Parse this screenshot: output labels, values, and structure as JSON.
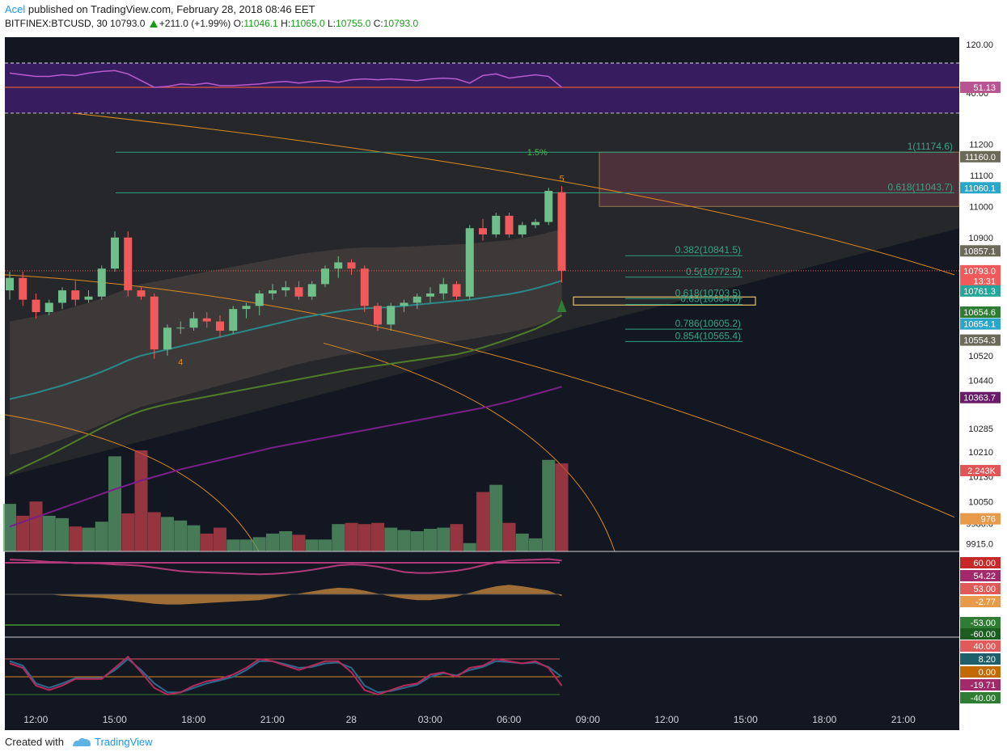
{
  "header": {
    "user": "Acel",
    "published_text": "published on TradingView.com, February 28, 2018 08:46 EET",
    "symbol": "BITFINEX:BTCUSD, 30",
    "last": "10793.0",
    "change": "+211.0 (+1.99%)",
    "o_label": "O:",
    "o_val": "11046.1",
    "h_label": "H:",
    "h_val": "11065.0",
    "l_label": "L:",
    "l_val": "10755.0",
    "c_label": "C:",
    "c_val": "10793.0"
  },
  "footer": {
    "created": "Created with",
    "brand": "TradingView"
  },
  "colors": {
    "background": "#131722",
    "up": "#6fbf8a",
    "down": "#f05a5a",
    "rsi_band": "#3e1f6b",
    "fib_line": "#2f9e80",
    "orange": "#e08a1e"
  },
  "chart_data": {
    "type": "candlestick",
    "price_axis": {
      "ylim": [
        9890,
        11300
      ],
      "ticks": [
        "11200",
        "11100",
        "11000",
        "10900",
        "10520",
        "10440",
        "10285",
        "10210",
        "10130",
        "10050",
        "9980.0",
        "9915.0"
      ],
      "tick_values": [
        11200,
        11100,
        11000,
        10900,
        10520,
        10440,
        10285,
        10210,
        10130,
        10050,
        9980,
        9915
      ]
    },
    "x_ticks": [
      "12:00",
      "15:00",
      "18:00",
      "21:00",
      "28",
      "03:00",
      "06:00",
      "09:00",
      "12:00",
      "15:00",
      "18:00",
      "21:00"
    ],
    "x_tick_index": [
      1,
      7,
      13,
      19,
      25,
      31,
      37,
      43,
      49,
      55,
      61,
      67
    ],
    "candles": [
      {
        "o": 10730,
        "h": 10790,
        "l": 10700,
        "c": 10770
      },
      {
        "o": 10770,
        "h": 10790,
        "l": 10680,
        "c": 10700
      },
      {
        "o": 10700,
        "h": 10720,
        "l": 10640,
        "c": 10660
      },
      {
        "o": 10660,
        "h": 10700,
        "l": 10650,
        "c": 10690
      },
      {
        "o": 10690,
        "h": 10740,
        "l": 10670,
        "c": 10730
      },
      {
        "o": 10730,
        "h": 10760,
        "l": 10680,
        "c": 10700
      },
      {
        "o": 10700,
        "h": 10730,
        "l": 10690,
        "c": 10710
      },
      {
        "o": 10710,
        "h": 10810,
        "l": 10700,
        "c": 10800
      },
      {
        "o": 10800,
        "h": 10920,
        "l": 10790,
        "c": 10900
      },
      {
        "o": 10900,
        "h": 10920,
        "l": 10710,
        "c": 10730
      },
      {
        "o": 10730,
        "h": 10740,
        "l": 10700,
        "c": 10710
      },
      {
        "o": 10710,
        "h": 10720,
        "l": 10510,
        "c": 10540
      },
      {
        "o": 10540,
        "h": 10620,
        "l": 10520,
        "c": 10610
      },
      {
        "o": 10610,
        "h": 10630,
        "l": 10590,
        "c": 10610
      },
      {
        "o": 10610,
        "h": 10660,
        "l": 10600,
        "c": 10640
      },
      {
        "o": 10640,
        "h": 10660,
        "l": 10610,
        "c": 10630
      },
      {
        "o": 10630,
        "h": 10650,
        "l": 10580,
        "c": 10600
      },
      {
        "o": 10600,
        "h": 10680,
        "l": 10590,
        "c": 10670
      },
      {
        "o": 10670,
        "h": 10690,
        "l": 10640,
        "c": 10680
      },
      {
        "o": 10680,
        "h": 10730,
        "l": 10650,
        "c": 10720
      },
      {
        "o": 10720,
        "h": 10750,
        "l": 10700,
        "c": 10730
      },
      {
        "o": 10730,
        "h": 10760,
        "l": 10710,
        "c": 10740
      },
      {
        "o": 10740,
        "h": 10760,
        "l": 10700,
        "c": 10710
      },
      {
        "o": 10710,
        "h": 10760,
        "l": 10700,
        "c": 10750
      },
      {
        "o": 10750,
        "h": 10810,
        "l": 10740,
        "c": 10800
      },
      {
        "o": 10800,
        "h": 10840,
        "l": 10770,
        "c": 10820
      },
      {
        "o": 10820,
        "h": 10830,
        "l": 10780,
        "c": 10800
      },
      {
        "o": 10800,
        "h": 10810,
        "l": 10660,
        "c": 10680
      },
      {
        "o": 10680,
        "h": 10690,
        "l": 10600,
        "c": 10620
      },
      {
        "o": 10620,
        "h": 10690,
        "l": 10600,
        "c": 10680
      },
      {
        "o": 10680,
        "h": 10700,
        "l": 10660,
        "c": 10690
      },
      {
        "o": 10690,
        "h": 10720,
        "l": 10670,
        "c": 10710
      },
      {
        "o": 10710,
        "h": 10740,
        "l": 10690,
        "c": 10720
      },
      {
        "o": 10720,
        "h": 10770,
        "l": 10700,
        "c": 10750
      },
      {
        "o": 10750,
        "h": 10760,
        "l": 10700,
        "c": 10710
      },
      {
        "o": 10710,
        "h": 10940,
        "l": 10700,
        "c": 10930
      },
      {
        "o": 10930,
        "h": 10960,
        "l": 10890,
        "c": 10910
      },
      {
        "o": 10910,
        "h": 10980,
        "l": 10900,
        "c": 10970
      },
      {
        "o": 10970,
        "h": 10980,
        "l": 10900,
        "c": 10910
      },
      {
        "o": 10910,
        "h": 10950,
        "l": 10900,
        "c": 10940
      },
      {
        "o": 10940,
        "h": 10960,
        "l": 10930,
        "c": 10950
      },
      {
        "o": 10950,
        "h": 11060,
        "l": 10940,
        "c": 11050
      },
      {
        "o": 11046,
        "h": 11065,
        "l": 10755,
        "c": 10793
      }
    ],
    "volume": [
      200,
      150,
      210,
      150,
      140,
      105,
      100,
      125,
      400,
      160,
      425,
      165,
      145,
      130,
      110,
      75,
      100,
      50,
      50,
      60,
      75,
      85,
      70,
      50,
      50,
      115,
      120,
      115,
      120,
      100,
      90,
      85,
      95,
      100,
      115,
      35,
      250,
      280,
      120,
      75,
      55,
      385,
      370
    ],
    "ema_blue": [
      10380,
      10390,
      10400,
      10412,
      10424,
      10438,
      10452,
      10468,
      10486,
      10505,
      10520,
      10530,
      10540,
      10550,
      10560,
      10570,
      10580,
      10590,
      10600,
      10610,
      10620,
      10630,
      10640,
      10648,
      10655,
      10662,
      10668,
      10672,
      10674,
      10676,
      10680,
      10684,
      10688,
      10692,
      10696,
      10700,
      10706,
      10712,
      10718,
      10726,
      10736,
      10748,
      10761
    ],
    "ema_green": [
      10140,
      10160,
      10180,
      10200,
      10222,
      10244,
      10266,
      10288,
      10308,
      10326,
      10342,
      10354,
      10364,
      10372,
      10380,
      10388,
      10396,
      10404,
      10412,
      10420,
      10428,
      10436,
      10444,
      10452,
      10460,
      10468,
      10476,
      10482,
      10488,
      10494,
      10500,
      10506,
      10512,
      10518,
      10524,
      10534,
      10546,
      10560,
      10574,
      10590,
      10606,
      10626,
      10650
    ],
    "ema_purple": [
      9970,
      9985,
      10000,
      10015,
      10030,
      10045,
      10060,
      10075,
      10090,
      10104,
      10118,
      10130,
      10142,
      10154,
      10164,
      10174,
      10184,
      10194,
      10204,
      10214,
      10224,
      10232,
      10240,
      10248,
      10256,
      10264,
      10272,
      10280,
      10288,
      10296,
      10304,
      10312,
      10320,
      10328,
      10336,
      10344,
      10352,
      10362,
      10372,
      10384,
      10396,
      10408,
      10420
    ],
    "fib_levels": [
      {
        "label": "1(11174.6)",
        "price": 11174.6
      },
      {
        "label": "0.618(11043.7)",
        "price": 11043.7
      },
      {
        "label": "0.382(10841.5)",
        "price": 10841.5
      },
      {
        "label": "0.5(10772.5)",
        "price": 10772.5
      },
      {
        "label": "0.618(10703.5)",
        "price": 10703.5
      },
      {
        "label": "0.65(10684.8)",
        "price": 10684.8
      },
      {
        "label": "0.786(10605.2)",
        "price": 10605.2
      },
      {
        "label": "0.854(10565.4)",
        "price": 10565.4
      }
    ],
    "annotations": [
      {
        "text": "1.5%",
        "price": 11165,
        "index": 41
      },
      {
        "text": "5",
        "price": 11080,
        "index": 42
      },
      {
        "text": "4",
        "price": 10490,
        "index": 13
      }
    ],
    "price_badges": [
      {
        "text": "11160.0",
        "price": 11160,
        "color": "#6b6a58"
      },
      {
        "text": "11060.1",
        "price": 11060,
        "color": "#2aa6c9"
      },
      {
        "text": "10857.1",
        "price": 10857,
        "color": "#6b6a58"
      },
      {
        "text": "10793.0",
        "price": 10793,
        "color": "#f05a5a"
      },
      {
        "text": "13:31",
        "price": 10760,
        "color": "#f05a5a"
      },
      {
        "text": "10761.3",
        "price": 10728,
        "color": "#26a69a"
      },
      {
        "text": "10654.6",
        "price": 10660,
        "color": "#2e7d32"
      },
      {
        "text": "10654.1",
        "price": 10622,
        "color": "#2aa6c9"
      },
      {
        "text": "10554.3",
        "price": 10570,
        "color": "#6b6a58"
      },
      {
        "text": "10363.7",
        "price": 10385,
        "color": "#6a1b6a"
      },
      {
        "text": "2.243K",
        "price": 10150,
        "color": "#e05555"
      },
      {
        "text": "976",
        "price": 9995,
        "color": "#e79a4a"
      }
    ],
    "rsi": {
      "ticks": [
        "120.00",
        "40.00"
      ],
      "badge": "51.13",
      "values": [
        68,
        66,
        64,
        64,
        66,
        65,
        68,
        70,
        71,
        67,
        59,
        51,
        52,
        55,
        54,
        56,
        53,
        53,
        54,
        55,
        57,
        58,
        56,
        58,
        59,
        57,
        60,
        61,
        60,
        61,
        60,
        59,
        61,
        62,
        61,
        56,
        65,
        67,
        62,
        64,
        66,
        64,
        51
      ]
    },
    "osc1": {
      "badges": [
        "60.00",
        "54.22",
        "53.00",
        "-2.77",
        "-53.00",
        "-60.00"
      ],
      "line": [
        58,
        57,
        55,
        53,
        52,
        50,
        50,
        49,
        47,
        46,
        44,
        40,
        36,
        32,
        30,
        29,
        28,
        27,
        26,
        25,
        26,
        28,
        31,
        35,
        40,
        45,
        47,
        46,
        42,
        36,
        30,
        28,
        28,
        30,
        33,
        38,
        45,
        52,
        56,
        57,
        58,
        59,
        56
      ],
      "hist": [
        0,
        0,
        0,
        0,
        -2,
        -3,
        -4,
        -5,
        -7,
        -9,
        -11,
        -13,
        -14,
        -14,
        -13,
        -12,
        -11,
        -10,
        -9,
        -8,
        -5,
        -2,
        1,
        4,
        7,
        9,
        8,
        5,
        1,
        -3,
        -6,
        -8,
        -8,
        -6,
        -3,
        2,
        7,
        11,
        13,
        11,
        8,
        5,
        -2.77
      ]
    },
    "osc2": {
      "badges": [
        "40.00",
        "8.20",
        "0.00",
        "-19.71",
        "-40.00"
      ],
      "k": [
        30,
        20,
        -20,
        -30,
        -20,
        -5,
        -5,
        -5,
        20,
        45,
        10,
        -25,
        -40,
        -35,
        -20,
        -10,
        -5,
        5,
        20,
        40,
        35,
        25,
        15,
        25,
        35,
        35,
        10,
        -30,
        -40,
        -30,
        -20,
        -15,
        5,
        10,
        0,
        20,
        25,
        40,
        35,
        30,
        35,
        20,
        -20
      ],
      "d": [
        35,
        25,
        -15,
        -25,
        -15,
        -3,
        -3,
        -3,
        15,
        40,
        15,
        -15,
        -35,
        -35,
        -25,
        -15,
        -8,
        0,
        15,
        35,
        35,
        28,
        20,
        22,
        30,
        32,
        20,
        -20,
        -35,
        -32,
        -25,
        -18,
        0,
        8,
        3,
        15,
        22,
        35,
        33,
        30,
        32,
        22,
        0
      ]
    }
  }
}
